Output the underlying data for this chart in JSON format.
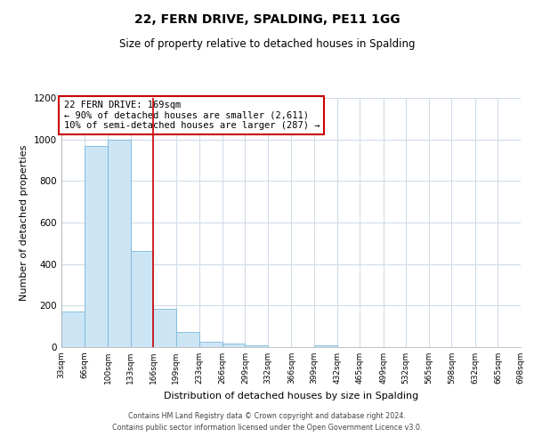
{
  "title": "22, FERN DRIVE, SPALDING, PE11 1GG",
  "subtitle": "Size of property relative to detached houses in Spalding",
  "xlabel": "Distribution of detached houses by size in Spalding",
  "ylabel": "Number of detached properties",
  "bar_lefts": [
    33,
    66,
    100,
    133,
    166,
    199,
    233,
    266,
    299,
    332,
    366,
    399,
    432,
    465,
    499,
    532,
    565,
    598,
    632,
    665
  ],
  "bar_rights": [
    66,
    100,
    133,
    166,
    199,
    233,
    266,
    299,
    332,
    366,
    399,
    432,
    465,
    499,
    532,
    565,
    598,
    632,
    665,
    698
  ],
  "bar_heights": [
    170,
    970,
    1000,
    465,
    185,
    75,
    25,
    18,
    10,
    0,
    0,
    8,
    0,
    0,
    0,
    0,
    0,
    0,
    0,
    0
  ],
  "bar_color": "#cce5f5",
  "bar_edge_color": "#7ab8d9",
  "property_line_x": 166,
  "property_line_color": "#cc0000",
  "annotation_title": "22 FERN DRIVE: 169sqm",
  "annotation_line1": "← 90% of detached houses are smaller (2,611)",
  "annotation_line2": "10% of semi-detached houses are larger (287) →",
  "annotation_box_color": "#ffffff",
  "annotation_box_edge_color": "#cc0000",
  "tick_positions": [
    33,
    66,
    100,
    133,
    166,
    199,
    233,
    266,
    299,
    332,
    366,
    399,
    432,
    465,
    499,
    532,
    565,
    598,
    632,
    665,
    698
  ],
  "tick_labels": [
    "33sqm",
    "66sqm",
    "100sqm",
    "133sqm",
    "166sqm",
    "199sqm",
    "233sqm",
    "266sqm",
    "299sqm",
    "332sqm",
    "366sqm",
    "399sqm",
    "432sqm",
    "465sqm",
    "499sqm",
    "532sqm",
    "565sqm",
    "598sqm",
    "632sqm",
    "665sqm",
    "698sqm"
  ],
  "xlim": [
    33,
    698
  ],
  "ylim": [
    0,
    1200
  ],
  "yticks": [
    0,
    200,
    400,
    600,
    800,
    1000,
    1200
  ],
  "footer1": "Contains HM Land Registry data © Crown copyright and database right 2024.",
  "footer2": "Contains public sector information licensed under the Open Government Licence v3.0.",
  "background_color": "#ffffff",
  "grid_color": "#d0dce8"
}
